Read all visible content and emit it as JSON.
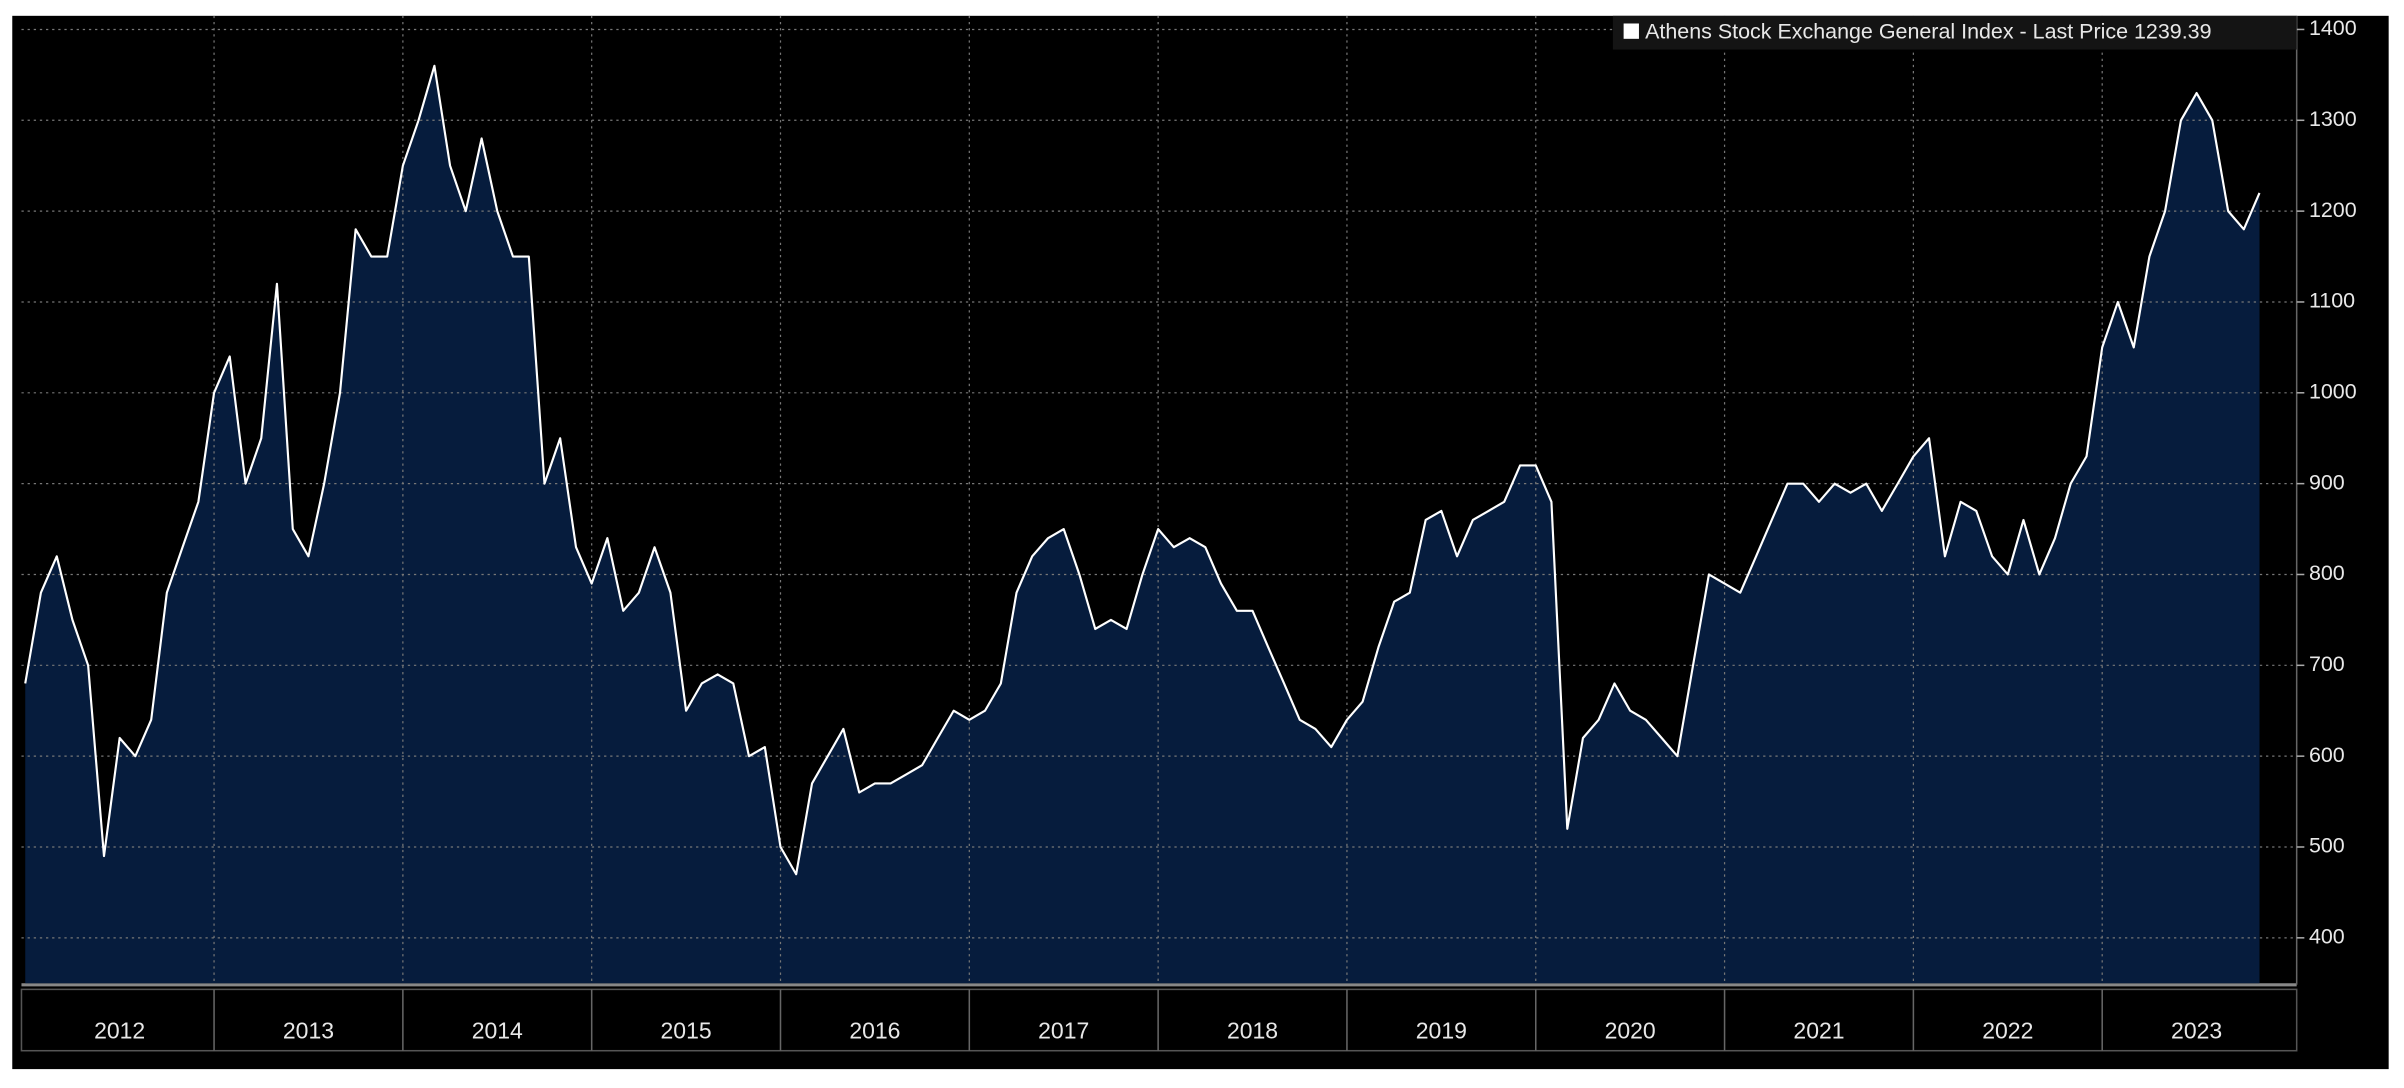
{
  "chart_data": {
    "type": "area",
    "series": [
      {
        "name": "Athens Stock Exchange General Index - Last Price 1239.39",
        "color": "#ffffff",
        "fill": "#061c3d",
        "values": [
          680,
          780,
          820,
          750,
          700,
          490,
          620,
          600,
          640,
          780,
          830,
          880,
          1000,
          1040,
          900,
          950,
          1120,
          850,
          820,
          900,
          1000,
          1180,
          1150,
          1150,
          1250,
          1300,
          1360,
          1250,
          1200,
          1280,
          1200,
          1150,
          1150,
          900,
          950,
          830,
          790,
          840,
          760,
          780,
          830,
          780,
          650,
          680,
          690,
          680,
          600,
          610,
          500,
          470,
          570,
          600,
          630,
          560,
          570,
          570,
          580,
          590,
          620,
          650,
          640,
          650,
          680,
          780,
          820,
          840,
          850,
          800,
          740,
          750,
          740,
          800,
          850,
          830,
          840,
          830,
          790,
          760,
          760,
          720,
          680,
          640,
          630,
          610,
          640,
          660,
          720,
          770,
          780,
          860,
          870,
          820,
          860,
          870,
          880,
          920,
          920,
          880,
          520,
          620,
          640,
          680,
          650,
          640,
          620,
          600,
          700,
          800,
          790,
          780,
          820,
          860,
          900,
          900,
          880,
          900,
          890,
          900,
          870,
          900,
          930,
          950,
          820,
          880,
          870,
          820,
          800,
          860,
          800,
          840,
          900,
          930,
          1050,
          1100,
          1050,
          1150,
          1200,
          1300,
          1330,
          1300,
          1200,
          1180,
          1220
        ]
      }
    ],
    "x": [
      2012,
      2012.083,
      2012.167,
      2012.25,
      2012.333,
      2012.417,
      2012.5,
      2012.583,
      2012.667,
      2012.75,
      2012.833,
      2012.917,
      2013,
      2013.083,
      2013.167,
      2013.25,
      2013.333,
      2013.417,
      2013.5,
      2013.583,
      2013.667,
      2013.75,
      2013.833,
      2013.917,
      2014,
      2014.083,
      2014.167,
      2014.25,
      2014.333,
      2014.417,
      2014.5,
      2014.583,
      2014.667,
      2014.75,
      2014.833,
      2014.917,
      2015,
      2015.083,
      2015.167,
      2015.25,
      2015.333,
      2015.417,
      2015.5,
      2015.583,
      2015.667,
      2015.75,
      2015.833,
      2015.917,
      2016,
      2016.083,
      2016.167,
      2016.25,
      2016.333,
      2016.417,
      2016.5,
      2016.583,
      2016.667,
      2016.75,
      2016.833,
      2016.917,
      2017,
      2017.083,
      2017.167,
      2017.25,
      2017.333,
      2017.417,
      2017.5,
      2017.583,
      2017.667,
      2017.75,
      2017.833,
      2017.917,
      2018,
      2018.083,
      2018.167,
      2018.25,
      2018.333,
      2018.417,
      2018.5,
      2018.583,
      2018.667,
      2018.75,
      2018.833,
      2018.917,
      2019,
      2019.083,
      2019.167,
      2019.25,
      2019.333,
      2019.417,
      2019.5,
      2019.583,
      2019.667,
      2019.75,
      2019.833,
      2019.917,
      2020,
      2020.083,
      2020.167,
      2020.25,
      2020.333,
      2020.417,
      2020.5,
      2020.583,
      2020.667,
      2020.75,
      2020.833,
      2020.917,
      2021,
      2021.083,
      2021.167,
      2021.25,
      2021.333,
      2021.417,
      2021.5,
      2021.583,
      2021.667,
      2021.75,
      2021.833,
      2021.917,
      2022,
      2022.083,
      2022.167,
      2022.25,
      2022.333,
      2022.417,
      2022.5,
      2022.583,
      2022.667,
      2022.75,
      2022.833,
      2022.917,
      2023,
      2023.083,
      2023.167,
      2023.25,
      2023.333,
      2023.417,
      2023.5,
      2023.583,
      2023.667,
      2023.75,
      2023.833
    ],
    "xlim": [
      2011.98,
      2024.03
    ],
    "xticks": [
      {
        "value": 2012.5,
        "label": "2012"
      },
      {
        "value": 2013.5,
        "label": "2013"
      },
      {
        "value": 2014.5,
        "label": "2014"
      },
      {
        "value": 2015.5,
        "label": "2015"
      },
      {
        "value": 2016.5,
        "label": "2016"
      },
      {
        "value": 2017.5,
        "label": "2017"
      },
      {
        "value": 2018.5,
        "label": "2018"
      },
      {
        "value": 2019.5,
        "label": "2019"
      },
      {
        "value": 2020.5,
        "label": "2020"
      },
      {
        "value": 2021.5,
        "label": "2021"
      },
      {
        "value": 2022.5,
        "label": "2022"
      },
      {
        "value": 2023.5,
        "label": "2023"
      }
    ],
    "xgrid": [
      2013,
      2014,
      2015,
      2016,
      2017,
      2018,
      2019,
      2020,
      2021,
      2022,
      2023
    ],
    "ylim": [
      350,
      1415
    ],
    "yticks": [
      400,
      500,
      600,
      700,
      800,
      900,
      1000,
      1100,
      1200,
      1300,
      1400
    ],
    "grid": true
  }
}
